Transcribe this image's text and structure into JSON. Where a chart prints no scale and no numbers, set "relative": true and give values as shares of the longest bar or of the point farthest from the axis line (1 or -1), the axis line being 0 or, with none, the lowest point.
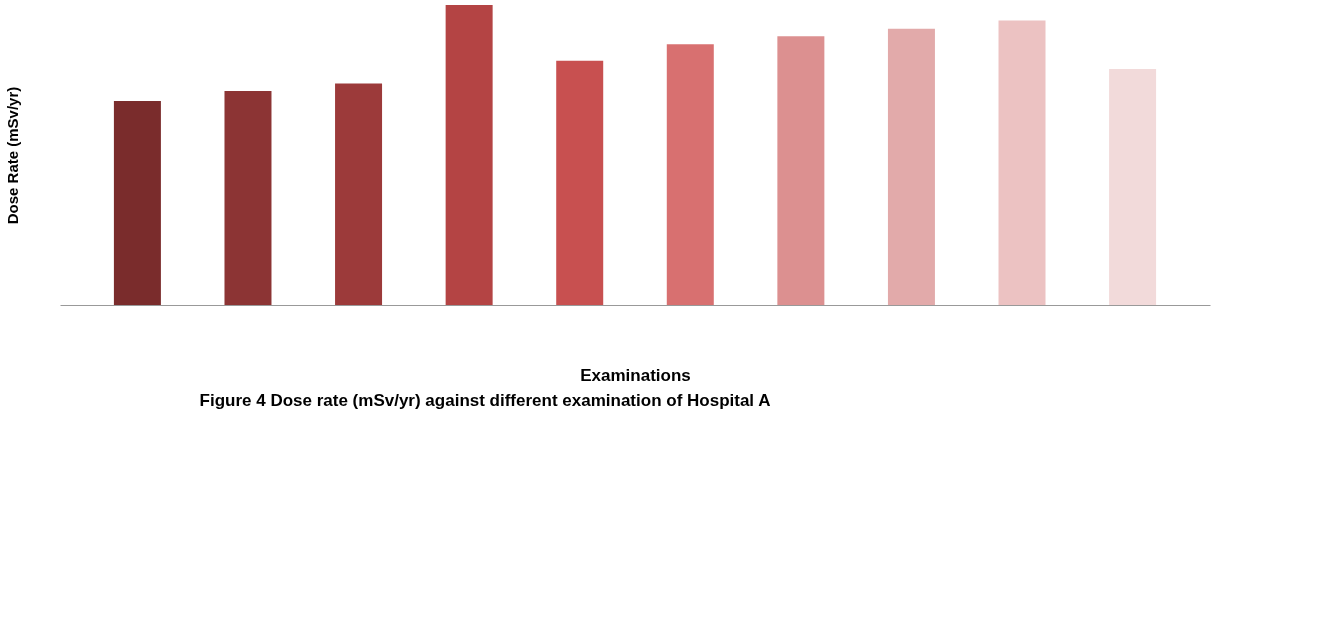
{
  "chart_data": {
    "type": "bar",
    "relative": true,
    "title": "Figure 4 Dose rate (mSv/yr) against different examination of Hospital A",
    "xlabel": "Examinations",
    "ylabel": "Dose Rate (mSv/yr)",
    "grid": false,
    "categories": [
      null,
      null,
      null,
      null,
      null,
      null,
      null,
      null,
      null,
      null
    ],
    "values": [
      0.68,
      0.713,
      0.738,
      1,
      0.814,
      0.869,
      0.896,
      0.921,
      0.948,
      0.787
    ],
    "colors": [
      "#7a2c2c",
      "#8c3434",
      "#9c3a3a",
      "#b44444",
      "#c85050",
      "#d87070",
      "#dc9090",
      "#e2aaaa",
      "#ecc2c2",
      "#f2dada"
    ]
  }
}
